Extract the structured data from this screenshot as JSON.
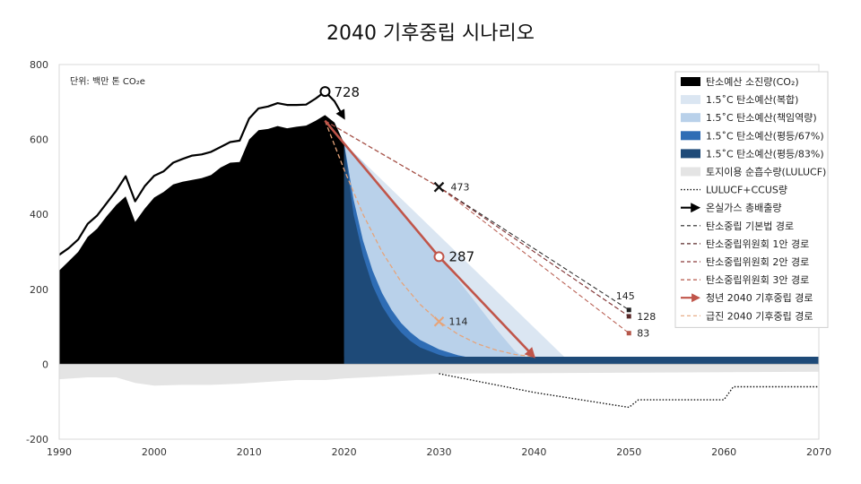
{
  "chart_data": {
    "type": "area",
    "title": "2040 기후중립 시나리오",
    "unit_note": "단위: 백만 톤 CO₂e",
    "xlim": [
      1990,
      2070
    ],
    "ylim": [
      -200,
      800
    ],
    "x_ticks": [
      1990,
      2000,
      2010,
      2020,
      2030,
      2040,
      2050,
      2060,
      2070
    ],
    "y_ticks": [
      -200,
      0,
      200,
      400,
      600,
      800
    ],
    "grid": false,
    "legend_position": "top-right",
    "colors": {
      "budget_used": "#000000",
      "composite": "#dbe6f2",
      "responsibility": "#b9d1ea",
      "equal67": "#2f6db5",
      "equal83": "#1e4a78",
      "lulucf": "#e4e4e4",
      "gross": "#000000",
      "basic_law": "#222222",
      "committee1": "#5a2a2a",
      "committee2": "#8a3a3a",
      "committee3": "#b5574a",
      "youth2040": "#c0554a",
      "radical2040": "#e6a47a"
    },
    "series": [
      {
        "key": "gross",
        "name": "온실가스 총배출량",
        "x": [
          1990,
          1991,
          1992,
          1993,
          1994,
          1995,
          1996,
          1997,
          1998,
          1999,
          2000,
          2001,
          2002,
          2003,
          2004,
          2005,
          2006,
          2007,
          2008,
          2009,
          2010,
          2011,
          2012,
          2013,
          2014,
          2015,
          2016,
          2017,
          2018,
          2019
        ],
        "values": [
          292,
          310,
          333,
          375,
          397,
          430,
          463,
          502,
          435,
          475,
          503,
          515,
          538,
          548,
          557,
          560,
          567,
          580,
          593,
          597,
          656,
          683,
          688,
          697,
          692,
          692,
          693,
          709,
          728,
          702
        ]
      },
      {
        "key": "budget_used",
        "name": "탄소예산 소진량(CO₂)",
        "x": [
          1990,
          1991,
          1992,
          1993,
          1994,
          1995,
          1996,
          1997,
          1998,
          1999,
          2000,
          2001,
          2002,
          2003,
          2004,
          2005,
          2006,
          2007,
          2008,
          2009,
          2010,
          2011,
          2012,
          2013,
          2014,
          2015,
          2016,
          2017,
          2018,
          2019,
          2020
        ],
        "values": [
          250,
          275,
          300,
          340,
          362,
          395,
          425,
          448,
          380,
          415,
          445,
          460,
          480,
          487,
          492,
          497,
          505,
          525,
          538,
          540,
          600,
          625,
          628,
          636,
          630,
          634,
          637,
          650,
          665,
          645,
          590
        ]
      },
      {
        "key": "composite",
        "name": "1.5˚C 탄소예산(복합)",
        "x": [
          2020,
          2044
        ],
        "values": [
          590,
          0
        ]
      },
      {
        "key": "responsibility",
        "name": "1.5˚C 탄소예산(책임역량)",
        "x": [
          2020,
          2022,
          2024,
          2026,
          2028,
          2030,
          2032,
          2034,
          2036,
          2038,
          2040
        ],
        "values": [
          590,
          540,
          470,
          410,
          350,
          290,
          225,
          160,
          95,
          35,
          0
        ]
      },
      {
        "key": "equal67",
        "name": "1.5˚C 탄소예산(평등/67%)",
        "x": [
          2020,
          2021,
          2022,
          2023,
          2024,
          2025,
          2026,
          2027,
          2028,
          2030,
          2032,
          2034,
          2036,
          2038
        ],
        "values": [
          590,
          440,
          330,
          250,
          190,
          145,
          110,
          85,
          65,
          40,
          24,
          14,
          8,
          0
        ]
      },
      {
        "key": "equal83",
        "name": "1.5˚C 탄소예산(평등/83%)",
        "x": [
          2020,
          2021,
          2022,
          2023,
          2024,
          2025,
          2026,
          2027,
          2028,
          2030,
          2032,
          2034,
          2036
        ],
        "values": [
          590,
          400,
          290,
          210,
          155,
          115,
          85,
          62,
          45,
          25,
          12,
          5,
          0
        ]
      },
      {
        "key": "net_floor",
        "name": "",
        "x": [
          2020,
          2070
        ],
        "values": [
          20,
          20
        ]
      },
      {
        "key": "lulucf",
        "name": "토지이용 순흡수량(LULUCF)",
        "x": [
          1990,
          1993,
          1996,
          1998,
          2000,
          2003,
          2006,
          2009,
          2012,
          2015,
          2018,
          2020,
          2030,
          2070
        ],
        "values": [
          -40,
          -35,
          -35,
          -50,
          -57,
          -55,
          -55,
          -52,
          -47,
          -42,
          -42,
          -38,
          -25,
          -20
        ]
      },
      {
        "key": "lulucf_ccus",
        "name": "LULUCF+CCUS량",
        "x": [
          2030,
          2040,
          2050,
          2051,
          2060,
          2061,
          2070
        ],
        "values": [
          -25,
          -75,
          -115,
          -95,
          -95,
          -60,
          -60
        ]
      },
      {
        "key": "basic_law",
        "name": "탄소중립 기본법 경로",
        "x": [
          2018,
          2030,
          2050
        ],
        "values": [
          650,
          473,
          145
        ]
      },
      {
        "key": "committee1",
        "name": "탄소중립위원회 1안 경로",
        "x": [
          2018,
          2030,
          2050
        ],
        "values": [
          650,
          473,
          128
        ]
      },
      {
        "key": "committee2",
        "name": "탄소중립위원회 2안 경로",
        "x": [
          2018,
          2030,
          2050
        ],
        "values": [
          650,
          473,
          128
        ]
      },
      {
        "key": "committee3",
        "name": "탄소중립위원회 3안 경로",
        "x": [
          2018,
          2030,
          2050
        ],
        "values": [
          650,
          473,
          83
        ]
      },
      {
        "key": "youth2040",
        "name": "청년 2040 기후중립 경로",
        "x": [
          2018,
          2030,
          2040
        ],
        "values": [
          650,
          287,
          20
        ]
      },
      {
        "key": "radical2040",
        "name": "급진 2040 기후중립 경로",
        "x": [
          2018,
          2020,
          2022,
          2024,
          2026,
          2028,
          2030,
          2032,
          2034,
          2036,
          2038,
          2040
        ],
        "values": [
          650,
          520,
          400,
          300,
          220,
          160,
          114,
          80,
          55,
          38,
          26,
          20
        ]
      }
    ],
    "annotations": [
      {
        "label": "728",
        "x": 2018,
        "y": 728,
        "style": "big",
        "marker": "circle"
      },
      {
        "label": "287",
        "x": 2030,
        "y": 287,
        "style": "big",
        "marker": "circle"
      },
      {
        "label": "473",
        "x": 2030,
        "y": 473,
        "style": "small",
        "marker": "cross"
      },
      {
        "label": "114",
        "x": 2030,
        "y": 114,
        "style": "small",
        "marker": "cross-orange"
      },
      {
        "label": "145",
        "x": 2050,
        "y": 145,
        "style": "small",
        "marker": "square"
      },
      {
        "label": "128",
        "x": 2050,
        "y": 128,
        "style": "small",
        "marker": "square"
      },
      {
        "label": "83",
        "x": 2050,
        "y": 83,
        "style": "small",
        "marker": "square"
      }
    ],
    "legend": [
      {
        "label": "탄소예산 소진량(CO₂)",
        "swatch": "box",
        "color": "#000000"
      },
      {
        "label": "1.5˚C 탄소예산(복합)",
        "swatch": "box",
        "color": "#dbe6f2"
      },
      {
        "label": "1.5˚C 탄소예산(책임역량)",
        "swatch": "box",
        "color": "#b9d1ea"
      },
      {
        "label": "1.5˚C 탄소예산(평등/67%)",
        "swatch": "box",
        "color": "#2f6db5"
      },
      {
        "label": "1.5˚C 탄소예산(평등/83%)",
        "swatch": "box",
        "color": "#1e4a78"
      },
      {
        "label": "토지이용 순흡수량(LULUCF)",
        "swatch": "box",
        "color": "#e4e4e4"
      },
      {
        "label": "LULUCF+CCUS량",
        "swatch": "dotted",
        "color": "#111111"
      },
      {
        "label": "온실가스 총배출량",
        "swatch": "arrow",
        "color": "#000000"
      },
      {
        "label": "탄소중립 기본법 경로",
        "swatch": "dashed",
        "color": "#222222"
      },
      {
        "label": "탄소중립위원회 1안 경로",
        "swatch": "dashed",
        "color": "#5a2a2a"
      },
      {
        "label": "탄소중립위원회 2안 경로",
        "swatch": "dashed",
        "color": "#8a3a3a"
      },
      {
        "label": "탄소중립위원회 3안 경로",
        "swatch": "dashed",
        "color": "#b5574a"
      },
      {
        "label": "청년 2040 기후중립 경로",
        "swatch": "arrow",
        "color": "#c0554a"
      },
      {
        "label": "급진 2040 기후중립 경로",
        "swatch": "dashed",
        "color": "#e6a47a"
      }
    ]
  }
}
